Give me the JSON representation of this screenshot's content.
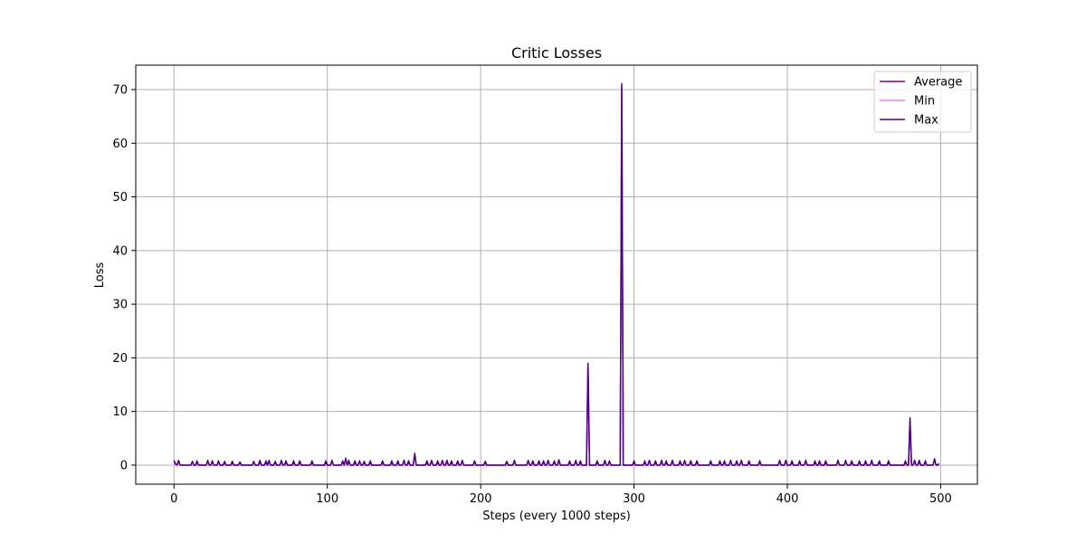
{
  "chart_data": {
    "type": "line",
    "title": "Critic Losses",
    "xlabel": "Steps (every 1000 steps)",
    "ylabel": "Loss",
    "xlim": [
      -24.95,
      523.95
    ],
    "ylim": [
      -3.55,
      74.55
    ],
    "xticks": [
      0,
      100,
      200,
      300,
      400,
      500
    ],
    "yticks": [
      0,
      10,
      20,
      30,
      40,
      50,
      60,
      70
    ],
    "grid": true,
    "legend_position": "upper-right",
    "colors": {
      "Average": "#800080",
      "Min": "#ee82ee",
      "Max": "#4b0082"
    },
    "baseline": 0.0,
    "series": [
      {
        "name": "Average",
        "color": "#800080",
        "points": [
          [
            0,
            0.5
          ],
          [
            1,
            0.1
          ],
          [
            3,
            0.6
          ],
          [
            5,
            0
          ],
          [
            12,
            0.5
          ],
          [
            15,
            0.5
          ],
          [
            22,
            0.6
          ],
          [
            25,
            0.6
          ],
          [
            29,
            0.5
          ],
          [
            33,
            0.5
          ],
          [
            38,
            0.5
          ],
          [
            43,
            0.4
          ],
          [
            52,
            0.5
          ],
          [
            56,
            0.6
          ],
          [
            60,
            0.5
          ],
          [
            62,
            0.6
          ],
          [
            66,
            0.5
          ],
          [
            70,
            0.6
          ],
          [
            73,
            0.5
          ],
          [
            78,
            0.5
          ],
          [
            82,
            0.5
          ],
          [
            90,
            0.5
          ],
          [
            99,
            0.5
          ],
          [
            103,
            0.6
          ],
          [
            110,
            0.6
          ],
          [
            112,
            0.9
          ],
          [
            114,
            0.6
          ],
          [
            118,
            0.5
          ],
          [
            121,
            0.6
          ],
          [
            124,
            0.5
          ],
          [
            128,
            0.5
          ],
          [
            136,
            0.5
          ],
          [
            142,
            0.5
          ],
          [
            146,
            0.5
          ],
          [
            150,
            0.6
          ],
          [
            153,
            0.5
          ],
          [
            157,
            1.9
          ],
          [
            165,
            0.5
          ],
          [
            168,
            0.6
          ],
          [
            172,
            0.5
          ],
          [
            175,
            0.6
          ],
          [
            178,
            0.6
          ],
          [
            181,
            0.5
          ],
          [
            185,
            0.5
          ],
          [
            188,
            0.6
          ],
          [
            196,
            0.6
          ],
          [
            203,
            0.5
          ],
          [
            217,
            0.5
          ],
          [
            222,
            0.6
          ],
          [
            231,
            0.6
          ],
          [
            234,
            0.5
          ],
          [
            238,
            0.5
          ],
          [
            241,
            0.5
          ],
          [
            244,
            0.6
          ],
          [
            248,
            0.6
          ],
          [
            251,
            0.6
          ],
          [
            258,
            0.5
          ],
          [
            262,
            0.6
          ],
          [
            265,
            0.5
          ],
          [
            270,
            18.5
          ],
          [
            276,
            0.5
          ],
          [
            281,
            0.6
          ],
          [
            284,
            0.6
          ],
          [
            292,
            70.5
          ],
          [
            300,
            0.5
          ],
          [
            307,
            0.5
          ],
          [
            310,
            0.6
          ],
          [
            314,
            0.5
          ],
          [
            318,
            0.6
          ],
          [
            321,
            0.5
          ],
          [
            325,
            0.6
          ],
          [
            330,
            0.5
          ],
          [
            333,
            0.6
          ],
          [
            337,
            0.5
          ],
          [
            341,
            0.5
          ],
          [
            350,
            0.5
          ],
          [
            356,
            0.5
          ],
          [
            359,
            0.5
          ],
          [
            363,
            0.6
          ],
          [
            367,
            0.5
          ],
          [
            370,
            0.6
          ],
          [
            375,
            0.5
          ],
          [
            382,
            0.5
          ],
          [
            395,
            0.6
          ],
          [
            399,
            0.6
          ],
          [
            403,
            0.5
          ],
          [
            408,
            0.5
          ],
          [
            412,
            0.6
          ],
          [
            418,
            0.5
          ],
          [
            421,
            0.5
          ],
          [
            425,
            0.5
          ],
          [
            433,
            0.6
          ],
          [
            438,
            0.6
          ],
          [
            442,
            0.5
          ],
          [
            447,
            0.5
          ],
          [
            451,
            0.5
          ],
          [
            455,
            0.6
          ],
          [
            460,
            0.5
          ],
          [
            466,
            0.5
          ],
          [
            477,
            0.5
          ],
          [
            480,
            8.2
          ],
          [
            483,
            0.6
          ],
          [
            486,
            0.6
          ],
          [
            490,
            0.5
          ],
          [
            496,
            0.9
          ],
          [
            499,
            0.2
          ]
        ]
      },
      {
        "name": "Min",
        "color": "#ee82ee",
        "points": [
          [
            0,
            0.3
          ],
          [
            1,
            0.0
          ],
          [
            3,
            0.4
          ],
          [
            5,
            0
          ],
          [
            12,
            0.3
          ],
          [
            22,
            0.4
          ],
          [
            29,
            0.3
          ],
          [
            52,
            0.3
          ],
          [
            62,
            0.4
          ],
          [
            70,
            0.4
          ],
          [
            103,
            0.4
          ],
          [
            112,
            0.6
          ],
          [
            121,
            0.4
          ],
          [
            150,
            0.4
          ],
          [
            157,
            1.5
          ],
          [
            168,
            0.4
          ],
          [
            175,
            0.4
          ],
          [
            188,
            0.4
          ],
          [
            222,
            0.4
          ],
          [
            231,
            0.4
          ],
          [
            244,
            0.4
          ],
          [
            251,
            0.4
          ],
          [
            262,
            0.4
          ],
          [
            270,
            18.2
          ],
          [
            281,
            0.4
          ],
          [
            292,
            70.2
          ],
          [
            310,
            0.4
          ],
          [
            318,
            0.4
          ],
          [
            325,
            0.4
          ],
          [
            333,
            0.4
          ],
          [
            363,
            0.4
          ],
          [
            370,
            0.4
          ],
          [
            395,
            0.4
          ],
          [
            399,
            0.4
          ],
          [
            412,
            0.4
          ],
          [
            433,
            0.4
          ],
          [
            438,
            0.4
          ],
          [
            455,
            0.4
          ],
          [
            480,
            7.9
          ],
          [
            483,
            0.4
          ],
          [
            496,
            0.6
          ]
        ]
      },
      {
        "name": "Max",
        "color": "#4b0082",
        "points": [
          [
            0,
            0.9
          ],
          [
            1,
            0.2
          ],
          [
            3,
            0.9
          ],
          [
            5,
            0
          ],
          [
            12,
            0.7
          ],
          [
            15,
            0.8
          ],
          [
            22,
            0.9
          ],
          [
            25,
            0.8
          ],
          [
            29,
            0.8
          ],
          [
            33,
            0.7
          ],
          [
            38,
            0.7
          ],
          [
            43,
            0.6
          ],
          [
            52,
            0.7
          ],
          [
            56,
            0.9
          ],
          [
            60,
            0.8
          ],
          [
            62,
            0.9
          ],
          [
            66,
            0.7
          ],
          [
            70,
            0.9
          ],
          [
            73,
            0.8
          ],
          [
            78,
            0.8
          ],
          [
            82,
            0.8
          ],
          [
            90,
            0.8
          ],
          [
            99,
            0.8
          ],
          [
            103,
            0.9
          ],
          [
            110,
            0.8
          ],
          [
            112,
            1.3
          ],
          [
            114,
            0.9
          ],
          [
            118,
            0.8
          ],
          [
            121,
            0.8
          ],
          [
            124,
            0.7
          ],
          [
            128,
            0.8
          ],
          [
            136,
            0.8
          ],
          [
            142,
            0.8
          ],
          [
            146,
            0.8
          ],
          [
            150,
            0.9
          ],
          [
            153,
            0.8
          ],
          [
            157,
            2.2
          ],
          [
            165,
            0.8
          ],
          [
            168,
            0.9
          ],
          [
            172,
            0.8
          ],
          [
            175,
            0.9
          ],
          [
            178,
            0.9
          ],
          [
            181,
            0.8
          ],
          [
            185,
            0.8
          ],
          [
            188,
            0.9
          ],
          [
            196,
            0.8
          ],
          [
            203,
            0.7
          ],
          [
            217,
            0.7
          ],
          [
            222,
            0.9
          ],
          [
            231,
            0.9
          ],
          [
            234,
            0.8
          ],
          [
            238,
            0.8
          ],
          [
            241,
            0.8
          ],
          [
            244,
            0.9
          ],
          [
            248,
            0.8
          ],
          [
            251,
            1.0
          ],
          [
            258,
            0.8
          ],
          [
            262,
            0.9
          ],
          [
            265,
            0.8
          ],
          [
            270,
            19.0
          ],
          [
            276,
            0.8
          ],
          [
            281,
            0.9
          ],
          [
            284,
            0.8
          ],
          [
            292,
            71.1
          ],
          [
            300,
            0.8
          ],
          [
            307,
            0.8
          ],
          [
            310,
            0.9
          ],
          [
            314,
            0.8
          ],
          [
            318,
            0.9
          ],
          [
            321,
            0.8
          ],
          [
            325,
            0.9
          ],
          [
            330,
            0.8
          ],
          [
            333,
            0.9
          ],
          [
            337,
            0.8
          ],
          [
            341,
            0.8
          ],
          [
            350,
            0.8
          ],
          [
            356,
            0.8
          ],
          [
            359,
            0.8
          ],
          [
            363,
            0.9
          ],
          [
            367,
            0.8
          ],
          [
            370,
            0.9
          ],
          [
            375,
            0.8
          ],
          [
            382,
            0.8
          ],
          [
            395,
            0.9
          ],
          [
            399,
            0.9
          ],
          [
            403,
            0.8
          ],
          [
            408,
            0.8
          ],
          [
            412,
            0.9
          ],
          [
            418,
            0.8
          ],
          [
            421,
            0.8
          ],
          [
            425,
            0.8
          ],
          [
            433,
            0.9
          ],
          [
            438,
            0.9
          ],
          [
            442,
            0.8
          ],
          [
            447,
            0.8
          ],
          [
            451,
            0.8
          ],
          [
            455,
            0.9
          ],
          [
            460,
            0.8
          ],
          [
            466,
            0.8
          ],
          [
            477,
            0.8
          ],
          [
            480,
            8.8
          ],
          [
            483,
            0.9
          ],
          [
            486,
            0.9
          ],
          [
            490,
            0.8
          ],
          [
            496,
            1.2
          ],
          [
            499,
            0.3
          ]
        ]
      }
    ]
  }
}
